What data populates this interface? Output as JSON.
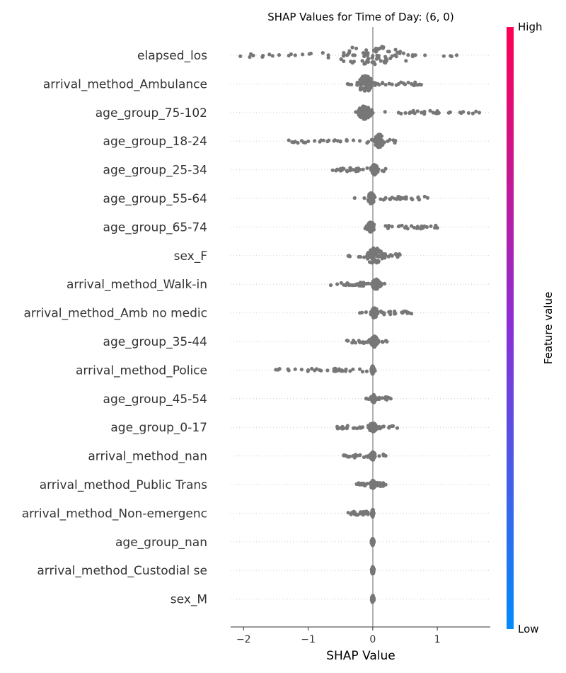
{
  "chart_data": {
    "type": "scatter",
    "subtype": "beeswarm",
    "title": "SHAP Values for Time of Day: (6, 0)",
    "xlabel": "SHAP Value",
    "xlim": [
      -2.2,
      1.82
    ],
    "xticks": [
      -2,
      -1,
      0,
      1
    ],
    "xtick_labels": [
      "−2",
      "−1",
      "0",
      "1"
    ],
    "zero_line": 0,
    "point_color": "#777777",
    "colorbar": {
      "label": "Feature value",
      "high_label": "High",
      "low_label": "Low",
      "high_color": "#ff0052",
      "mid_color": "#8a2fd6",
      "low_color": "#008bfb"
    },
    "features": [
      {
        "name": "elapsed_los",
        "min": -2.05,
        "max": 1.3,
        "core": [
          -1.0,
          0.95
        ],
        "spread": 1.0,
        "outliers": [
          -2.05,
          -1.85,
          -1.7,
          -1.6,
          -1.55,
          -1.45,
          -1.3,
          -1.2,
          1.1,
          1.3
        ]
      },
      {
        "name": "arrival_method_Ambulance",
        "min": -0.5,
        "max": 0.75,
        "core": [
          -0.28,
          0.05
        ],
        "spread": 0.9,
        "outliers": [
          0.1,
          0.15,
          0.2,
          0.3,
          0.4,
          0.5,
          0.6,
          0.7,
          0.75
        ]
      },
      {
        "name": "age_group_75-102",
        "min": -0.27,
        "max": 1.65,
        "core": [
          -0.27,
          0.03
        ],
        "spread": 0.75,
        "outliers": [
          0.4,
          0.6,
          0.8,
          1.0,
          1.2,
          1.4,
          1.55,
          1.65
        ]
      },
      {
        "name": "age_group_18-24",
        "min": -1.3,
        "max": 0.35,
        "core": [
          0.0,
          0.2
        ],
        "spread": 0.75,
        "outliers": [
          -1.3,
          -1.2,
          -1.1,
          -1.0,
          -0.9,
          -0.8,
          -0.7,
          -0.6,
          -0.5,
          -0.4,
          -0.3,
          -0.2,
          0.35
        ]
      },
      {
        "name": "age_group_25-34",
        "min": -0.62,
        "max": 0.2,
        "core": [
          -0.05,
          0.1
        ],
        "spread": 0.55,
        "outliers": [
          -0.62,
          -0.55,
          -0.5,
          -0.45,
          -0.4,
          -0.35,
          -0.3,
          -0.25,
          -0.2,
          -0.15,
          0.2
        ]
      },
      {
        "name": "age_group_55-64",
        "min": -0.28,
        "max": 0.85,
        "core": [
          -0.1,
          0.05
        ],
        "spread": 0.6,
        "outliers": [
          -0.28,
          0.2,
          0.3,
          0.4,
          0.5,
          0.6,
          0.7,
          0.85
        ]
      },
      {
        "name": "age_group_65-74",
        "min": -0.17,
        "max": 1.0,
        "core": [
          -0.12,
          0.05
        ],
        "spread": 0.55,
        "outliers": [
          0.2,
          0.3,
          0.4,
          0.5,
          0.6,
          0.7,
          0.8,
          0.9,
          1.0
        ]
      },
      {
        "name": "sex_F",
        "min": -0.38,
        "max": 0.42,
        "core": [
          -0.2,
          0.25
        ],
        "spread": 0.85,
        "outliers": [
          -0.38,
          0.42
        ]
      },
      {
        "name": "arrival_method_Walk-in",
        "min": -0.65,
        "max": 0.2,
        "core": [
          -0.05,
          0.15
        ],
        "spread": 0.55,
        "outliers": [
          -0.65,
          -0.55,
          -0.45,
          -0.4,
          -0.35,
          -0.3,
          -0.25,
          -0.2,
          -0.15
        ]
      },
      {
        "name": "arrival_method_Amb no medic",
        "min": -0.2,
        "max": 0.6,
        "core": [
          -0.05,
          0.1
        ],
        "spread": 0.55,
        "outliers": [
          -0.2,
          0.15,
          0.25,
          0.35,
          0.45,
          0.55,
          0.6
        ]
      },
      {
        "name": "age_group_35-44",
        "min": -0.4,
        "max": 0.22,
        "core": [
          -0.05,
          0.1
        ],
        "spread": 0.6,
        "outliers": [
          -0.4,
          -0.3,
          -0.2,
          0.22
        ]
      },
      {
        "name": "arrival_method_Police",
        "min": -1.5,
        "max": 0.05,
        "core": [
          -0.03,
          0.03
        ],
        "spread": 0.45,
        "outliers": [
          -1.5,
          -1.3,
          -1.2,
          -1.1,
          -1.0,
          -0.9,
          -0.8,
          -0.7,
          -0.6,
          -0.5,
          -0.35,
          -0.2
        ]
      },
      {
        "name": "age_group_45-54",
        "min": -0.1,
        "max": 0.28,
        "core": [
          -0.03,
          0.05
        ],
        "spread": 0.45,
        "outliers": [
          -0.1,
          0.1,
          0.15,
          0.2,
          0.28
        ]
      },
      {
        "name": "age_group_0-17",
        "min": -0.55,
        "max": 0.38,
        "core": [
          -0.08,
          0.08
        ],
        "spread": 0.5,
        "outliers": [
          -0.55,
          -0.45,
          -0.4,
          -0.3,
          -0.2,
          0.15,
          0.25,
          0.38
        ]
      },
      {
        "name": "arrival_method_nan",
        "min": -0.45,
        "max": 0.2,
        "core": [
          -0.05,
          0.05
        ],
        "spread": 0.45,
        "outliers": [
          -0.45,
          -0.4,
          -0.35,
          -0.3,
          -0.2,
          -0.1,
          0.1,
          0.2
        ]
      },
      {
        "name": "arrival_method_Public Trans",
        "min": -0.25,
        "max": 0.2,
        "core": [
          -0.05,
          0.05
        ],
        "spread": 0.45,
        "outliers": [
          -0.25,
          -0.18,
          -0.12,
          0.1,
          0.15,
          0.2
        ]
      },
      {
        "name": "arrival_method_Non-emergenc",
        "min": -0.38,
        "max": 0.02,
        "core": [
          -0.02,
          0.02
        ],
        "spread": 0.4,
        "outliers": [
          -0.38,
          -0.32,
          -0.28
        ]
      },
      {
        "name": "age_group_nan",
        "min": -0.02,
        "max": 0.02,
        "core": [
          -0.02,
          0.02
        ],
        "spread": 0.4,
        "outliers": []
      },
      {
        "name": "arrival_method_Custodial se",
        "min": -0.02,
        "max": 0.02,
        "core": [
          -0.02,
          0.02
        ],
        "spread": 0.4,
        "outliers": []
      },
      {
        "name": "sex_M",
        "min": -0.02,
        "max": 0.02,
        "core": [
          -0.02,
          0.02
        ],
        "spread": 0.4,
        "outliers": []
      }
    ]
  }
}
